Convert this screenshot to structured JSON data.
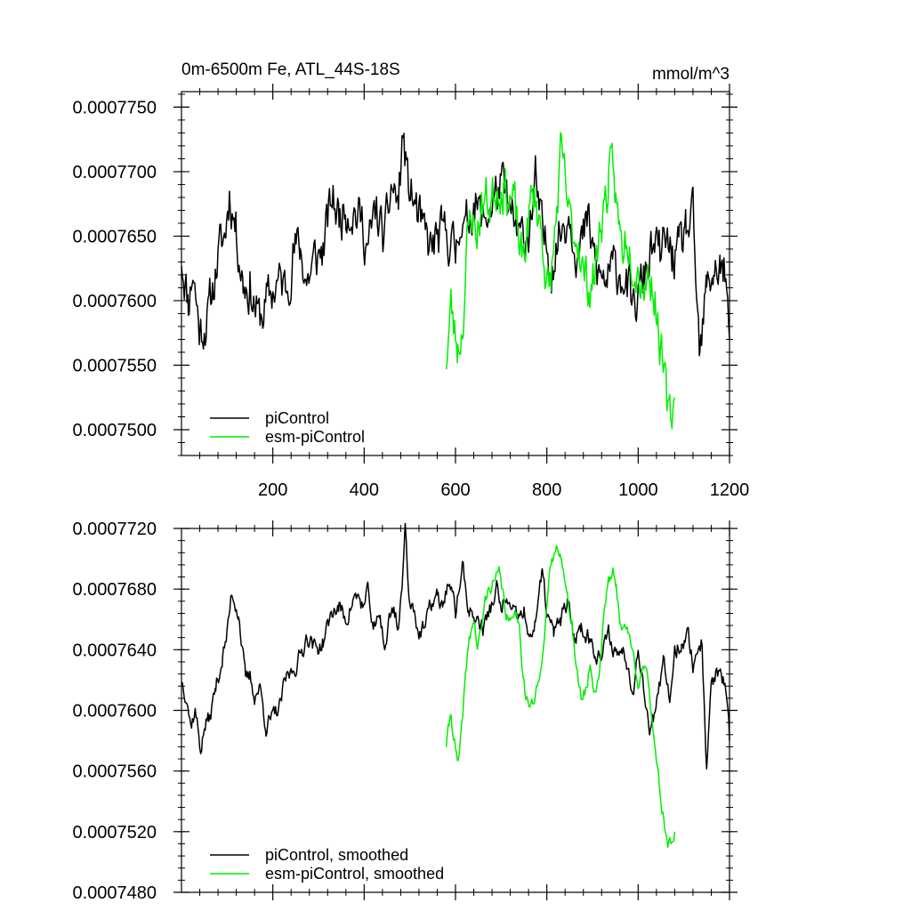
{
  "figure": {
    "title_left": "0m-6500m Fe, ATL_44S-18S",
    "title_right": "mmol/m^3"
  },
  "colors": {
    "piControl": "#000000",
    "esm": "#00ee00"
  },
  "chart_data": [
    {
      "type": "line",
      "title": "0m-6500m Fe, ATL_44S-18S",
      "units": "mmol/m^3",
      "xlim": [
        0,
        1200
      ],
      "ylim": [
        0.000748,
        0.0007762
      ],
      "x_ticks": [
        200,
        400,
        600,
        800,
        1000,
        1200
      ],
      "y_ticks": [
        0.00075,
        0.000755,
        0.00076,
        0.000765,
        0.00077,
        0.000775
      ],
      "y_tick_labels": [
        "0.0007500",
        "0.0007550",
        "0.0007600",
        "0.0007650",
        "0.0007700",
        "0.0007750"
      ],
      "legend_position": "lower-left",
      "series": [
        {
          "name": "piControl",
          "color": "#000000",
          "noise": 1.6e-06,
          "seed": 11,
          "x": [
            0,
            15,
            25,
            40,
            60,
            80,
            95,
            105,
            120,
            135,
            150,
            170,
            190,
            210,
            230,
            245,
            260,
            275,
            290,
            310,
            330,
            345,
            360,
            380,
            395,
            410,
            425,
            445,
            460,
            475,
            485,
            495,
            510,
            530,
            545,
            555,
            570,
            585,
            600,
            610,
            620,
            640,
            660,
            680,
            700,
            720,
            740,
            760,
            775,
            790,
            810,
            830,
            850,
            870,
            890,
            910,
            930,
            950,
            970,
            990,
            1010,
            1030,
            1050,
            1060,
            1075,
            1090,
            1105,
            1120,
            1135,
            1150,
            1165,
            1180,
            1190,
            1200
          ],
          "values": [
            0.0007635,
            0.00076,
            0.0007625,
            0.0007575,
            0.000759,
            0.0007635,
            0.000765,
            0.0007685,
            0.0007655,
            0.0007615,
            0.000761,
            0.0007585,
            0.00076,
            0.0007615,
            0.000761,
            0.000764,
            0.000764,
            0.0007615,
            0.000763,
            0.000764,
            0.000768,
            0.0007665,
            0.0007675,
            0.000767,
            0.000766,
            0.000764,
            0.000767,
            0.0007645,
            0.000769,
            0.0007675,
            0.000773,
            0.000769,
            0.0007675,
            0.000765,
            0.000764,
            0.0007645,
            0.000765,
            0.000765,
            0.0007635,
            0.000767,
            0.000765,
            0.000768,
            0.000766,
            0.0007675,
            0.000769,
            0.0007665,
            0.0007645,
            0.0007655,
            0.000769,
            0.000765,
            0.000763,
            0.0007655,
            0.000767,
            0.0007635,
            0.000766,
            0.000762,
            0.0007615,
            0.0007625,
            0.000762,
            0.000759,
            0.0007615,
            0.000764,
            0.0007635,
            0.0007645,
            0.0007635,
            0.0007635,
            0.0007655,
            0.000766,
            0.000755,
            0.000761,
            0.0007625,
            0.0007625,
            0.000762,
            0.000757
          ]
        },
        {
          "name": "esm-piControl",
          "color": "#00ee00",
          "noise": 1.6e-06,
          "seed": 23,
          "x": [
            580,
            590,
            598,
            605,
            615,
            625,
            635,
            645,
            655,
            665,
            675,
            690,
            705,
            720,
            730,
            745,
            755,
            765,
            775,
            790,
            805,
            820,
            830,
            840,
            850,
            860,
            870,
            880,
            895,
            905,
            920,
            935,
            945,
            955,
            965,
            975,
            985,
            995,
            1005,
            1015,
            1025,
            1035,
            1045,
            1055,
            1065,
            1072,
            1080
          ],
          "values": [
            0.0007555,
            0.0007595,
            0.0007575,
            0.0007565,
            0.000758,
            0.000764,
            0.000767,
            0.000765,
            0.000767,
            0.000768,
            0.0007675,
            0.000769,
            0.000769,
            0.000768,
            0.000767,
            0.000763,
            0.000765,
            0.0007675,
            0.000768,
            0.000765,
            0.00076,
            0.000766,
            0.000771,
            0.000769,
            0.000766,
            0.000765,
            0.000765,
            0.000762,
            0.000761,
            0.000762,
            0.0007665,
            0.000769,
            0.00077,
            0.0007665,
            0.000764,
            0.0007655,
            0.000764,
            0.000763,
            0.000762,
            0.0007615,
            0.000762,
            0.000761,
            0.0007575,
            0.0007545,
            0.000751,
            0.000751,
            0.0007525
          ]
        }
      ]
    },
    {
      "type": "line",
      "title": "",
      "xlim": [
        0,
        1200
      ],
      "ylim": [
        0.000748,
        0.000772
      ],
      "x_ticks": [
        200,
        400,
        600,
        800,
        1000,
        1200
      ],
      "y_ticks": [
        0.000748,
        0.000752,
        0.000756,
        0.00076,
        0.000764,
        0.000768,
        0.000772
      ],
      "y_tick_labels": [
        "0.0007480",
        "0.0007520",
        "0.0007560",
        "0.0007600",
        "0.0007640",
        "0.0007680",
        "0.0007720"
      ],
      "legend_position": "lower-left",
      "series": [
        {
          "name": "piControl, smoothed",
          "color": "#000000",
          "noise": 5e-07,
          "seed": 37,
          "x": [
            0,
            12,
            20,
            30,
            42,
            52,
            62,
            75,
            90,
            100,
            110,
            125,
            140,
            150,
            160,
            172,
            185,
            200,
            215,
            228,
            240,
            255,
            265,
            275,
            285,
            295,
            310,
            330,
            345,
            360,
            375,
            385,
            400,
            410,
            420,
            435,
            445,
            455,
            465,
            475,
            485,
            490,
            500,
            510,
            520,
            535,
            545,
            560,
            570,
            585,
            600,
            615,
            630,
            645,
            660,
            675,
            690,
            700,
            710,
            720,
            735,
            750,
            760,
            775,
            790,
            800,
            815,
            830,
            845,
            860,
            875,
            890,
            905,
            920,
            935,
            950,
            965,
            980,
            990,
            1000,
            1010,
            1025,
            1040,
            1055,
            1070,
            1080,
            1095,
            1110,
            1120,
            1130,
            1140,
            1150,
            1160,
            1170,
            1180,
            1190,
            1200
          ],
          "values": [
            0.000762,
            0.000761,
            0.000759,
            0.00076,
            0.0007575,
            0.000759,
            0.0007595,
            0.0007615,
            0.0007635,
            0.000765,
            0.0007678,
            0.0007665,
            0.000762,
            0.0007622,
            0.000761,
            0.0007615,
            0.000759,
            0.0007595,
            0.0007602,
            0.000762,
            0.0007625,
            0.0007632,
            0.000764,
            0.000765,
            0.0007645,
            0.000764,
            0.0007645,
            0.0007665,
            0.0007668,
            0.000766,
            0.0007672,
            0.0007675,
            0.0007668,
            0.0007678,
            0.000765,
            0.0007665,
            0.000764,
            0.000766,
            0.0007668,
            0.0007655,
            0.000769,
            0.000772,
            0.000767,
            0.0007668,
            0.000765,
            0.0007655,
            0.000767,
            0.0007675,
            0.0007668,
            0.0007685,
            0.0007665,
            0.0007695,
            0.0007665,
            0.000766,
            0.0007655,
            0.0007665,
            0.000768,
            0.0007665,
            0.0007675,
            0.0007665,
            0.000766,
            0.0007665,
            0.0007645,
            0.000766,
            0.000769,
            0.0007665,
            0.000765,
            0.000766,
            0.000767,
            0.0007648,
            0.0007655,
            0.000765,
            0.000764,
            0.0007635,
            0.000765,
            0.0007638,
            0.000764,
            0.000763,
            0.000761,
            0.0007645,
            0.000762,
            0.000759,
            0.00076,
            0.000763,
            0.000761,
            0.000764,
            0.0007645,
            0.000765,
            0.000763,
            0.000764,
            0.0007645,
            0.000756,
            0.0007615,
            0.0007625,
            0.0007623,
            0.0007615,
            0.000758
          ]
        },
        {
          "name": "esm-piControl, smoothed",
          "color": "#00ee00",
          "noise": 4e-07,
          "seed": 41,
          "x": [
            580,
            590,
            600,
            605,
            612,
            620,
            630,
            640,
            648,
            655,
            665,
            675,
            685,
            695,
            705,
            712,
            720,
            730,
            740,
            748,
            755,
            765,
            775,
            785,
            795,
            805,
            815,
            825,
            832,
            838,
            845,
            855,
            865,
            875,
            885,
            895,
            905,
            915,
            925,
            935,
            945,
            952,
            960,
            970,
            980,
            990,
            1000,
            1010,
            1020,
            1030,
            1040,
            1050,
            1058,
            1065,
            1072,
            1080
          ],
          "values": [
            0.0007578,
            0.0007598,
            0.0007575,
            0.0007562,
            0.000758,
            0.0007615,
            0.0007648,
            0.000766,
            0.0007642,
            0.000765,
            0.0007672,
            0.0007682,
            0.0007685,
            0.000769,
            0.0007675,
            0.0007662,
            0.0007655,
            0.000767,
            0.0007655,
            0.0007625,
            0.0007608,
            0.0007602,
            0.0007608,
            0.0007622,
            0.0007655,
            0.0007685,
            0.0007702,
            0.0007708,
            0.0007705,
            0.0007688,
            0.0007672,
            0.000766,
            0.0007625,
            0.0007608,
            0.0007612,
            0.000763,
            0.0007612,
            0.0007625,
            0.0007665,
            0.0007688,
            0.000769,
            0.000768,
            0.000766,
            0.0007655,
            0.000765,
            0.0007635,
            0.000762,
            0.000763,
            0.000762,
            0.0007595,
            0.000757,
            0.000754,
            0.0007525,
            0.0007515,
            0.0007512,
            0.000752
          ]
        }
      ]
    }
  ]
}
